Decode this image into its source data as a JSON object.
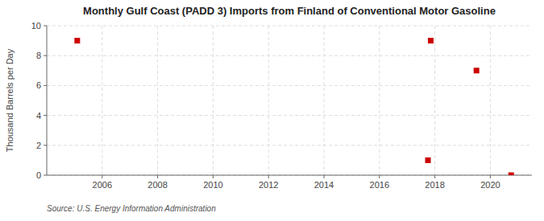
{
  "chart_data": {
    "type": "scatter",
    "title": "Monthly Gulf Coast (PADD 3) Imports from Finland of Conventional Motor Gasoline",
    "y_label": "Thousand Barrels per Day",
    "annotations": [
      "Source: U.S. Energy Information Administration"
    ],
    "x": [
      2005.1,
      2017.75,
      2017.85,
      2019.5,
      2020.75
    ],
    "values": [
      9.0,
      1.0,
      9.0,
      7.0,
      0.0
    ],
    "color": "#cc0000",
    "marker": "square",
    "xlim": [
      2004.0,
      2021.5
    ],
    "ylim": [
      0,
      10
    ],
    "xticks": [
      2006,
      2008,
      2010,
      2012,
      2014,
      2016,
      2018,
      2020
    ],
    "yticks": [
      0,
      2,
      4,
      6,
      8,
      10
    ],
    "grid": true
  }
}
